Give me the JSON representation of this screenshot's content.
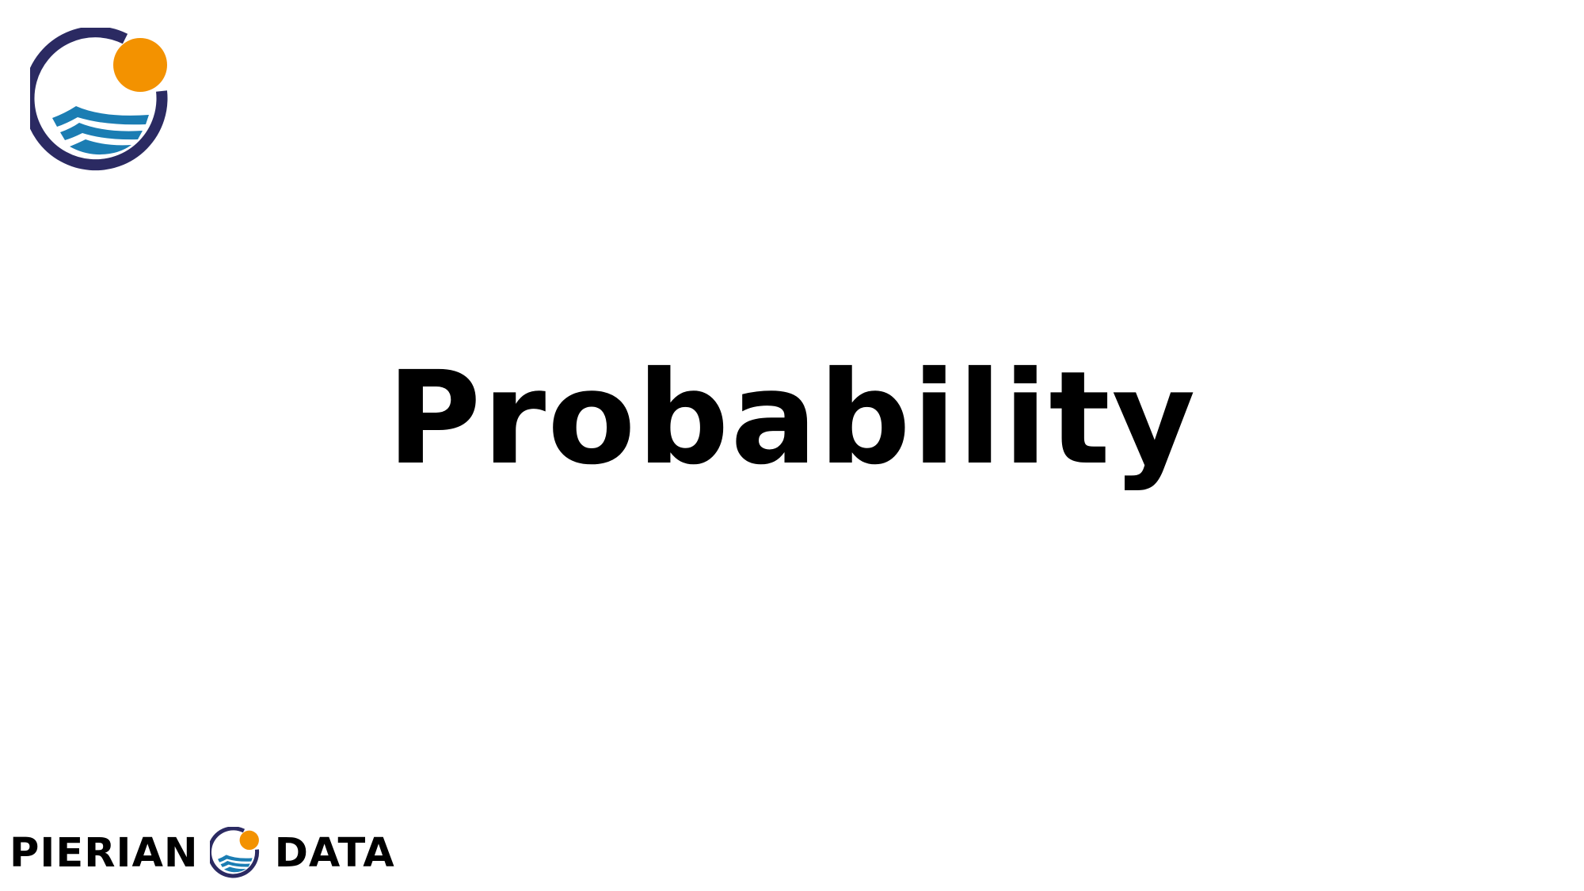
{
  "slide": {
    "title": "Probability"
  },
  "brand": {
    "word_left": "PIERIAN",
    "word_right": "DATA",
    "logo_icon": "pierian-data-logo-icon",
    "colors": {
      "ring": "#2b2a62",
      "sun": "#f39200",
      "waves": "#1b7db3"
    }
  }
}
